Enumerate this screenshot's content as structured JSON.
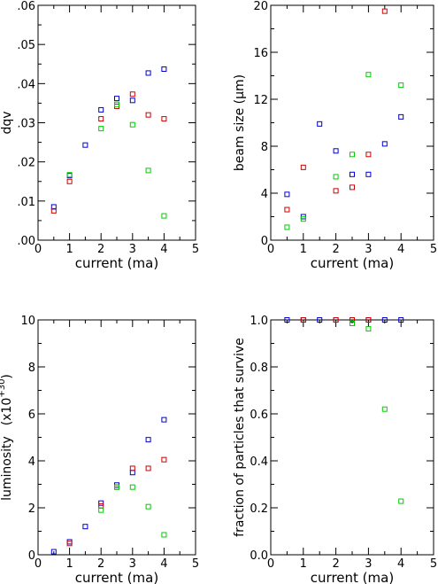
{
  "colors": {
    "blue": "#0000cc",
    "red": "#cc0000",
    "green": "#00cc00",
    "axis": "#000000"
  },
  "chart_data": [
    {
      "type": "scatter",
      "xlabel": "current (ma)",
      "ylabel": "dqv",
      "xlim": [
        0,
        5
      ],
      "ylim": [
        0,
        0.06
      ],
      "xticks": [
        "0",
        "1",
        "2",
        "3",
        "4",
        "5"
      ],
      "yticks": [
        ".00",
        ".01",
        ".02",
        ".03",
        ".04",
        ".05",
        ".06"
      ],
      "series": [
        {
          "color": "blue",
          "x": [
            0.5,
            1,
            1.5,
            2,
            2.5,
            3,
            3.5,
            4
          ],
          "y": [
            0.0085,
            0.0165,
            0.0243,
            0.0333,
            0.0362,
            0.0357,
            0.0427,
            0.0437
          ]
        },
        {
          "color": "red",
          "x": [
            0.5,
            1,
            2,
            2.5,
            3,
            3.5,
            4
          ],
          "y": [
            0.0075,
            0.015,
            0.031,
            0.0342,
            0.0373,
            0.032,
            0.031
          ]
        },
        {
          "color": "green",
          "x": [
            1,
            2,
            2.5,
            3,
            3.5,
            4
          ],
          "y": [
            0.0167,
            0.0285,
            0.0347,
            0.0295,
            0.0178,
            0.0062
          ]
        }
      ]
    },
    {
      "type": "scatter",
      "xlabel": "current (ma)",
      "ylabel": "beam size (μm)",
      "xlim": [
        0,
        5
      ],
      "ylim": [
        0,
        20
      ],
      "xticks": [
        "0",
        "1",
        "2",
        "3",
        "4",
        "5"
      ],
      "yticks": [
        "0",
        "4",
        "8",
        "12",
        "16",
        "20"
      ],
      "series": [
        {
          "color": "blue",
          "x": [
            0.5,
            1,
            1.5,
            2,
            2.5,
            3,
            3.5,
            4
          ],
          "y": [
            3.9,
            2.0,
            9.9,
            7.6,
            5.6,
            5.6,
            8.2,
            10.5
          ]
        },
        {
          "color": "red",
          "x": [
            0.5,
            1,
            2,
            2.5,
            3,
            3.5
          ],
          "y": [
            2.6,
            6.2,
            4.2,
            4.5,
            7.3,
            19.5
          ]
        },
        {
          "color": "green",
          "x": [
            0.5,
            1,
            2,
            2.5,
            3,
            4
          ],
          "y": [
            1.1,
            1.8,
            5.4,
            7.3,
            14.1,
            13.2
          ]
        }
      ]
    },
    {
      "type": "scatter",
      "xlabel": "current (ma)",
      "ylabel": "luminosity",
      "ylabel_unit": "(x10",
      "ylabel_exp": "+30",
      "ylabel_close": ")",
      "xlim": [
        0,
        5
      ],
      "ylim": [
        0,
        10
      ],
      "xticks": [
        "0",
        "1",
        "2",
        "3",
        "4",
        "5"
      ],
      "yticks": [
        "0",
        "2",
        "4",
        "6",
        "8",
        "10"
      ],
      "series": [
        {
          "color": "blue",
          "x": [
            0.5,
            1,
            1.5,
            2,
            2.5,
            3,
            3.5,
            4
          ],
          "y": [
            0.13,
            0.55,
            1.2,
            2.2,
            2.97,
            3.5,
            4.9,
            5.75
          ]
        },
        {
          "color": "red",
          "x": [
            1,
            2,
            2.5,
            3,
            3.5,
            4
          ],
          "y": [
            0.48,
            2.08,
            2.88,
            3.68,
            3.68,
            4.05
          ]
        },
        {
          "color": "green",
          "x": [
            2,
            2.5,
            3,
            3.5,
            4
          ],
          "y": [
            1.9,
            2.88,
            2.88,
            2.05,
            0.85
          ]
        }
      ]
    },
    {
      "type": "scatter",
      "xlabel": "current (ma)",
      "ylabel": "fraction of particles that survive",
      "xlim": [
        0,
        5
      ],
      "ylim": [
        0,
        1
      ],
      "xticks": [
        "0",
        "1",
        "2",
        "3",
        "4",
        "5"
      ],
      "yticks": [
        "0.0",
        "0.2",
        "0.4",
        "0.6",
        "0.8",
        "1.0"
      ],
      "series": [
        {
          "color": "blue",
          "x": [
            0.5,
            1,
            1.5,
            2,
            2.5,
            3,
            3.5,
            4
          ],
          "y": [
            1,
            1,
            1,
            1,
            1,
            1,
            1,
            1
          ]
        },
        {
          "color": "red",
          "x": [
            1,
            2,
            2.5,
            3
          ],
          "y": [
            1,
            1,
            1,
            1
          ]
        },
        {
          "color": "green",
          "x": [
            2.5,
            3,
            3.5,
            4
          ],
          "y": [
            0.985,
            0.962,
            0.62,
            0.228
          ]
        }
      ]
    }
  ]
}
